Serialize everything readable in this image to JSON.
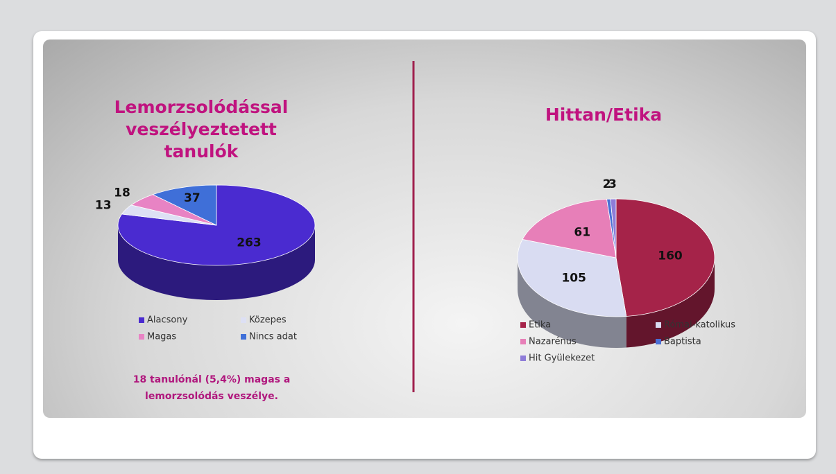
{
  "chart_data": [
    {
      "type": "pie",
      "title": "Lemorzsolódással veszélyeztetett tanulók",
      "categories": [
        "Alacsony",
        "Közepes",
        "Magas",
        "Nincs adat"
      ],
      "values": [
        263,
        13,
        18,
        37
      ],
      "colors": [
        "#4a2bd0",
        "#dde0f4",
        "#e883c4",
        "#3f6fd8"
      ],
      "annotation": "18 tanulónál (5,4%) magas a lemorzsolódás veszélye."
    },
    {
      "type": "pie",
      "title": "Hittan/Etika",
      "categories": [
        "Etika",
        "Római-katolikus",
        "Nazarénus",
        "Baptista",
        "Hit Gyülekezet"
      ],
      "values": [
        160,
        105,
        61,
        2,
        3
      ],
      "colors": [
        "#a52349",
        "#d9dcf2",
        "#e77fb8",
        "#4a6fd5",
        "#8e7cd8"
      ]
    }
  ]
}
